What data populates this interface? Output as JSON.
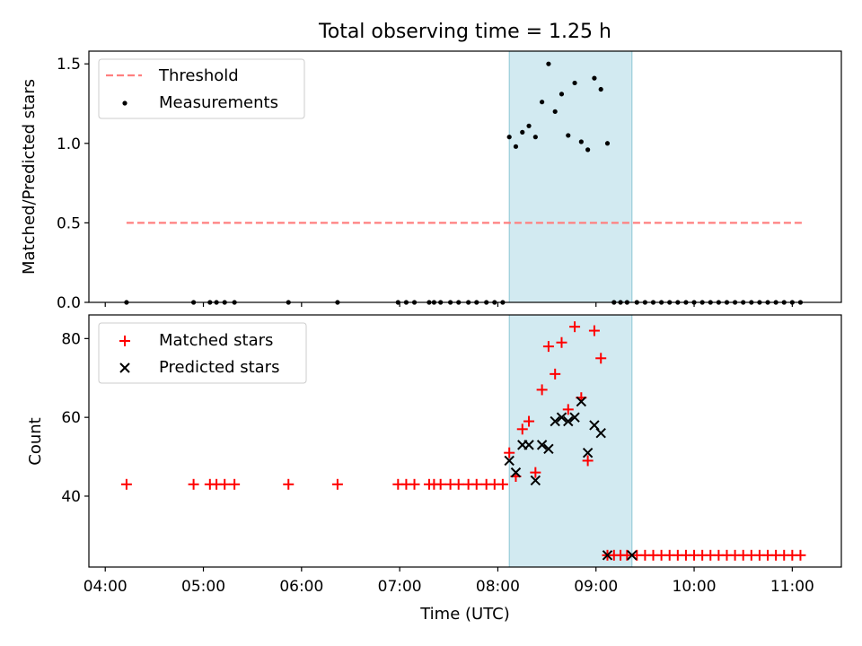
{
  "chart_data": [
    {
      "type": "scatter",
      "title": "Total observing time = 1.25 h",
      "xlabel": "",
      "ylabel": "Matched/Predicted stars",
      "xlim": [
        "03:50",
        "11:30"
      ],
      "ylim": [
        0,
        1.58
      ],
      "yticks": [
        "0.0",
        "0.5",
        "1.0",
        "1.5"
      ],
      "legend_position": "upper-left",
      "legend": [
        {
          "key": "threshold",
          "label": "Threshold",
          "color": "#ff7f7f",
          "marker": "dashed-line"
        },
        {
          "key": "measurements",
          "label": "Measurements",
          "color": "#000000",
          "marker": "dot"
        }
      ],
      "highlight_span": {
        "x0": "08:07",
        "x1": "09:22",
        "color": "#add8e6"
      },
      "threshold": {
        "y": 0.5,
        "x0": "04:13",
        "x1": "11:07"
      },
      "series": [
        {
          "name": "Measurements",
          "x": [
            "04:13",
            "04:54",
            "05:04",
            "05:08",
            "05:13",
            "05:19",
            "05:52",
            "06:22",
            "06:59",
            "07:04",
            "07:09",
            "07:18",
            "07:21",
            "07:25",
            "07:31",
            "07:36",
            "07:42",
            "07:47",
            "07:53",
            "07:58",
            "08:03",
            "08:07",
            "08:11",
            "08:15",
            "08:19",
            "08:23",
            "08:27",
            "08:31",
            "08:35",
            "08:39",
            "08:43",
            "08:47",
            "08:51",
            "08:55",
            "08:59",
            "09:03",
            "09:07",
            "09:11",
            "09:15",
            "09:19",
            "09:25",
            "09:30",
            "09:35",
            "09:40",
            "09:45",
            "09:50",
            "09:55",
            "10:00",
            "10:05",
            "10:10",
            "10:15",
            "10:20",
            "10:25",
            "10:30",
            "10:35",
            "10:40",
            "10:45",
            "10:50",
            "10:55",
            "11:00",
            "11:05"
          ],
          "y": [
            0,
            0,
            0,
            0,
            0,
            0,
            0,
            0,
            0,
            0,
            0,
            0,
            0,
            0,
            0,
            0,
            0,
            0,
            0,
            0,
            0,
            1.04,
            0.98,
            1.07,
            1.11,
            1.04,
            1.26,
            1.5,
            1.2,
            1.31,
            1.05,
            1.38,
            1.01,
            0.96,
            1.41,
            1.34,
            1.0,
            0,
            0,
            0,
            0,
            0,
            0,
            0,
            0,
            0,
            0,
            0,
            0,
            0,
            0,
            0,
            0,
            0,
            0,
            0,
            0,
            0,
            0,
            0,
            0
          ]
        }
      ]
    },
    {
      "type": "scatter",
      "title": "",
      "xlabel": "Time (UTC)",
      "ylabel": "Count",
      "xlim": [
        "03:50",
        "11:30"
      ],
      "ylim": [
        22,
        86
      ],
      "xticks": [
        "04:00",
        "05:00",
        "06:00",
        "07:00",
        "08:00",
        "09:00",
        "10:00",
        "11:00"
      ],
      "yticks": [
        "40",
        "60",
        "80"
      ],
      "legend_position": "upper-left",
      "legend": [
        {
          "key": "matched",
          "label": "Matched stars",
          "color": "#ff0000",
          "marker": "plus"
        },
        {
          "key": "predicted",
          "label": "Predicted stars",
          "color": "#000000",
          "marker": "x"
        }
      ],
      "highlight_span": {
        "x0": "08:07",
        "x1": "09:22",
        "color": "#add8e6"
      },
      "series": [
        {
          "name": "Matched stars",
          "x": [
            "04:13",
            "04:54",
            "05:04",
            "05:08",
            "05:13",
            "05:19",
            "05:52",
            "06:22",
            "06:59",
            "07:04",
            "07:09",
            "07:18",
            "07:21",
            "07:25",
            "07:31",
            "07:36",
            "07:42",
            "07:47",
            "07:53",
            "07:58",
            "08:03",
            "08:07",
            "08:11",
            "08:15",
            "08:19",
            "08:23",
            "08:27",
            "08:31",
            "08:35",
            "08:39",
            "08:43",
            "08:47",
            "08:51",
            "08:55",
            "08:59",
            "09:03",
            "09:07",
            "09:11",
            "09:15",
            "09:19",
            "09:25",
            "09:30",
            "09:35",
            "09:40",
            "09:45",
            "09:50",
            "09:55",
            "10:00",
            "10:05",
            "10:10",
            "10:15",
            "10:20",
            "10:25",
            "10:30",
            "10:35",
            "10:40",
            "10:45",
            "10:50",
            "10:55",
            "11:00",
            "11:05"
          ],
          "y": [
            43,
            43,
            43,
            43,
            43,
            43,
            43,
            43,
            43,
            43,
            43,
            43,
            43,
            43,
            43,
            43,
            43,
            43,
            43,
            43,
            43,
            51,
            45,
            57,
            59,
            46,
            67,
            78,
            71,
            79,
            62,
            83,
            65,
            49,
            82,
            75,
            25,
            25,
            25,
            25,
            25,
            25,
            25,
            25,
            25,
            25,
            25,
            25,
            25,
            25,
            25,
            25,
            25,
            25,
            25,
            25,
            25,
            25,
            25,
            25,
            25
          ]
        },
        {
          "name": "Predicted stars",
          "x": [
            "08:07",
            "08:11",
            "08:15",
            "08:19",
            "08:23",
            "08:27",
            "08:31",
            "08:35",
            "08:39",
            "08:43",
            "08:47",
            "08:51",
            "08:55",
            "08:59",
            "09:03",
            "09:07",
            "09:22"
          ],
          "y": [
            49,
            46,
            53,
            53,
            44,
            53,
            52,
            59,
            60,
            59,
            60,
            64,
            51,
            58,
            56,
            25,
            25
          ]
        }
      ]
    }
  ]
}
